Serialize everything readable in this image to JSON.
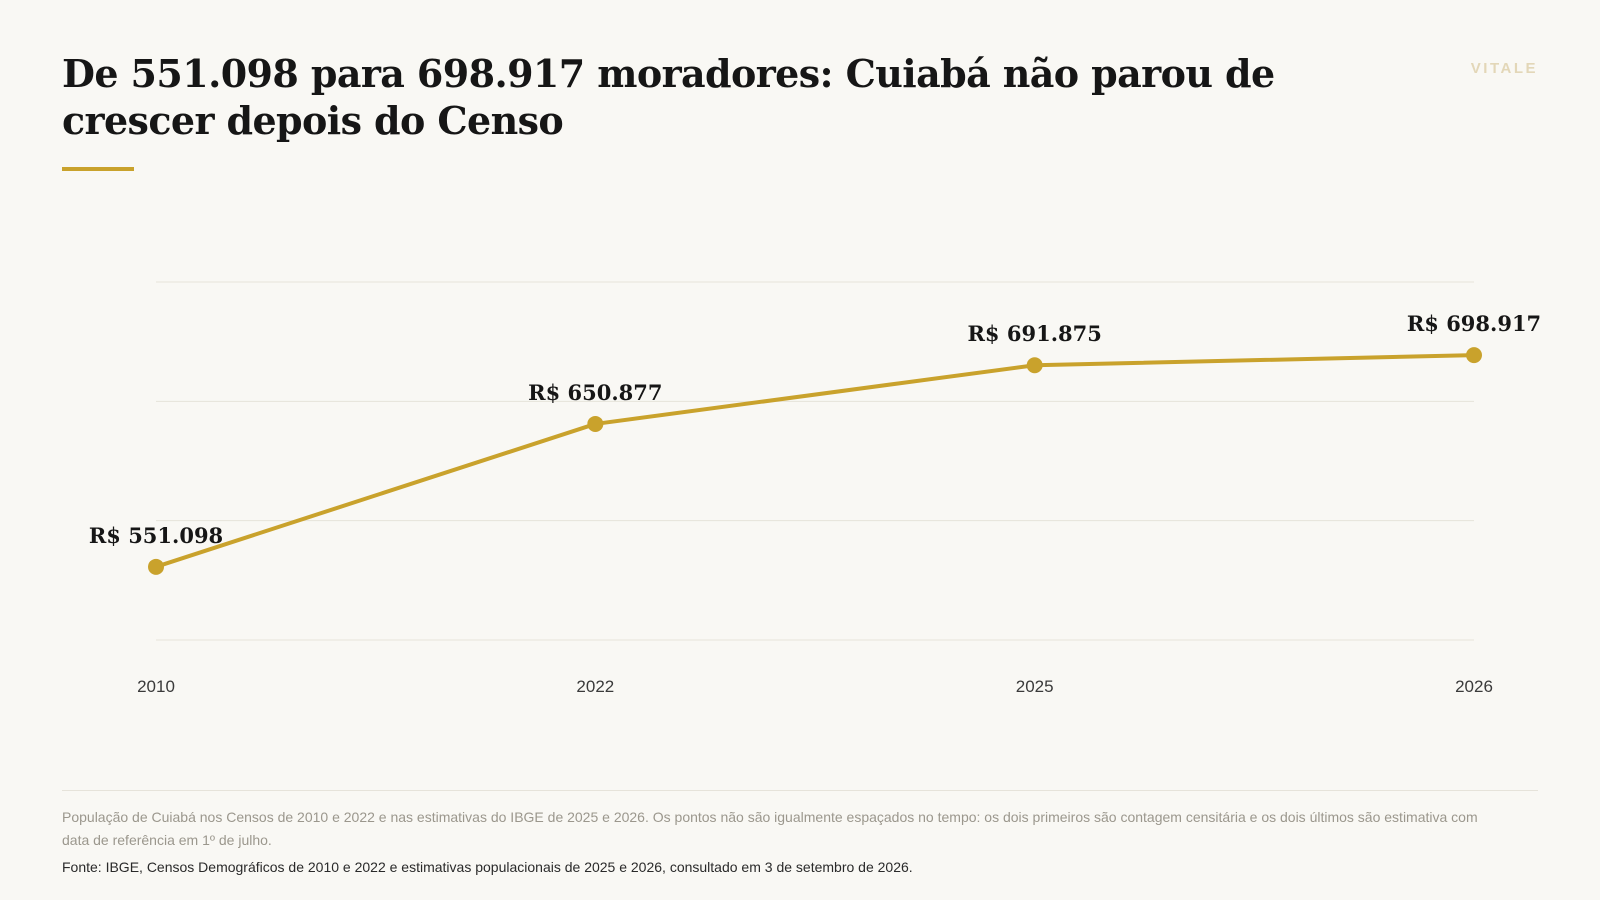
{
  "header": {
    "title": "De 551.098 para 698.917 moradores: Cuiabá não parou de crescer depois do Censo",
    "brand": "VITALE"
  },
  "chart_data": {
    "type": "line",
    "title": "De 551.098 para 698.917 moradores: Cuiabá não parou de crescer depois do Censo",
    "categories": [
      "2010",
      "2022",
      "2025",
      "2026"
    ],
    "series": [
      {
        "values": [
          551098,
          650877,
          691875,
          698917
        ],
        "labels": [
          "R$ 551.098",
          "R$ 650.877",
          "R$ 691.875",
          "R$ 698.917"
        ]
      }
    ],
    "xlabel": "",
    "ylabel": "",
    "ylim": [
      500000,
      750000
    ],
    "grid": true,
    "line_color": "#c9a22c",
    "grid_color": "#e6e3da"
  },
  "footer": {
    "note": "População de Cuiabá nos Censos de 2010 e 2022 e nas estimativas do IBGE de 2025 e 2026. Os pontos não são igualmente espaçados no tempo: os dois primeiros são contagem censitária e os dois últimos são estimativa com data de referência em 1º de julho.",
    "source": "Fonte: IBGE, Censos Demográficos de 2010 e 2022 e estimativas populacionais de 2025 e 2026, consultado em 3 de setembro de 2026."
  }
}
